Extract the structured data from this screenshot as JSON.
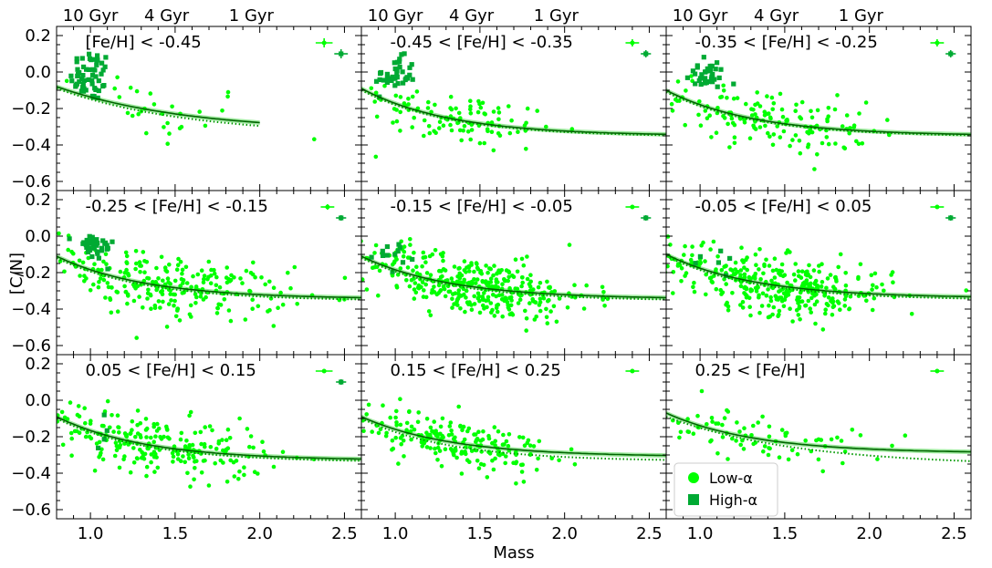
{
  "chart_data": {
    "type": "scatter",
    "layout": "3x3 grid of panels",
    "xlabel": "Mass",
    "ylabel": "[C/N]",
    "xlim": [
      0.8,
      2.6
    ],
    "ylim": [
      -0.65,
      0.25
    ],
    "xticks": [
      "1.0",
      "1.5",
      "2.0",
      "2.5"
    ],
    "yticks": [
      "0.2",
      "0.0",
      "−0.2",
      "−0.4",
      "−0.6"
    ],
    "age_labels": [
      "10 Gyr",
      "4 Gyr",
      "1 Gyr"
    ],
    "age_label_mass": [
      1.0,
      1.45,
      1.95
    ],
    "colors": {
      "low_alpha": "#00ff00",
      "high_alpha": "#00aa33",
      "fit_line": "#006400",
      "fit_band": "#8ee58e",
      "dotted_line": "#009900"
    },
    "legend": {
      "position": "lower-left of bottom-right panel",
      "entries": [
        {
          "label": "Low-α",
          "marker": "circle",
          "color": "#00ff00"
        },
        {
          "label": "High-α",
          "marker": "square",
          "color": "#00aa33"
        }
      ]
    },
    "panels": [
      {
        "title": "[Fe/H] < -0.45",
        "fit_end": 2.0,
        "fit": {
          "y_start": -0.08,
          "y_plateau": -0.33,
          "k": 1.3
        },
        "dotted": {
          "y_start": -0.09,
          "y_plateau": -0.35,
          "k": 1.3
        },
        "low_alpha": {
          "n": 30,
          "cx": 1.35,
          "sx": 0.35,
          "cy": -0.2,
          "sy": 0.1
        },
        "high_alpha": {
          "n": 55,
          "cx": 1.0,
          "sx": 0.06,
          "cy": -0.02,
          "sy": 0.07
        },
        "errorbars": [
          {
            "x": 2.38,
            "y": 0.16,
            "xerr": 0.05,
            "yerr": 0.025,
            "type": "low"
          },
          {
            "x": 2.48,
            "y": 0.1,
            "xerr": 0.04,
            "yerr": 0.025,
            "type": "high"
          }
        ]
      },
      {
        "title": "-0.45 < [Fe/H] < -0.35",
        "fit_end": 2.6,
        "fit": {
          "y_start": -0.09,
          "y_plateau": -0.35,
          "k": 1.9
        },
        "dotted": {
          "y_start": -0.1,
          "y_plateau": -0.355,
          "k": 1.9
        },
        "low_alpha": {
          "n": 110,
          "cx": 1.35,
          "sx": 0.3,
          "cy": -0.22,
          "sy": 0.08
        },
        "high_alpha": {
          "n": 40,
          "cx": 1.0,
          "sx": 0.06,
          "cy": -0.02,
          "sy": 0.05
        },
        "errorbars": [
          {
            "x": 2.4,
            "y": 0.16,
            "xerr": 0.04,
            "yerr": 0.02,
            "type": "low"
          },
          {
            "x": 2.48,
            "y": 0.1,
            "xerr": 0.03,
            "yerr": 0.02,
            "type": "high"
          }
        ]
      },
      {
        "title": "-0.35 < [Fe/H] < -0.25",
        "fit_end": 2.6,
        "fit": {
          "y_start": -0.1,
          "y_plateau": -0.35,
          "k": 1.9
        },
        "dotted": {
          "y_start": -0.11,
          "y_plateau": -0.355,
          "k": 1.9
        },
        "low_alpha": {
          "n": 150,
          "cx": 1.4,
          "sx": 0.3,
          "cy": -0.22,
          "sy": 0.08
        },
        "high_alpha": {
          "n": 35,
          "cx": 1.03,
          "sx": 0.06,
          "cy": -0.02,
          "sy": 0.04
        },
        "errorbars": [
          {
            "x": 2.4,
            "y": 0.16,
            "xerr": 0.04,
            "yerr": 0.02,
            "type": "low"
          },
          {
            "x": 2.48,
            "y": 0.1,
            "xerr": 0.03,
            "yerr": 0.02,
            "type": "high"
          }
        ]
      },
      {
        "title": "-0.25 < [Fe/H] < -0.15",
        "fit_end": 2.6,
        "fit": {
          "y_start": -0.11,
          "y_plateau": -0.345,
          "k": 1.9
        },
        "dotted": {
          "y_start": -0.12,
          "y_plateau": -0.355,
          "k": 1.9
        },
        "low_alpha": {
          "n": 260,
          "cx": 1.45,
          "sx": 0.35,
          "cy": -0.25,
          "sy": 0.08
        },
        "high_alpha": {
          "n": 35,
          "cx": 1.02,
          "sx": 0.06,
          "cy": -0.06,
          "sy": 0.04
        },
        "errorbars": [
          {
            "x": 2.4,
            "y": 0.16,
            "xerr": 0.04,
            "yerr": 0.015,
            "type": "low"
          },
          {
            "x": 2.48,
            "y": 0.1,
            "xerr": 0.03,
            "yerr": 0.015,
            "type": "high"
          }
        ]
      },
      {
        "title": "-0.15 < [Fe/H] < -0.05",
        "fit_end": 2.6,
        "fit": {
          "y_start": -0.11,
          "y_plateau": -0.345,
          "k": 1.9
        },
        "dotted": {
          "y_start": -0.12,
          "y_plateau": -0.355,
          "k": 1.9
        },
        "low_alpha": {
          "n": 380,
          "cx": 1.45,
          "sx": 0.35,
          "cy": -0.26,
          "sy": 0.08
        },
        "high_alpha": {
          "n": 12,
          "cx": 1.02,
          "sx": 0.06,
          "cy": -0.11,
          "sy": 0.04
        },
        "errorbars": [
          {
            "x": 2.4,
            "y": 0.16,
            "xerr": 0.04,
            "yerr": 0.01,
            "type": "low"
          },
          {
            "x": 2.48,
            "y": 0.1,
            "xerr": 0.03,
            "yerr": 0.015,
            "type": "high"
          }
        ]
      },
      {
        "title": "-0.05 < [Fe/H] < 0.05",
        "fit_end": 2.6,
        "fit": {
          "y_start": -0.1,
          "y_plateau": -0.34,
          "k": 1.9
        },
        "dotted": {
          "y_start": -0.11,
          "y_plateau": -0.35,
          "k": 1.9
        },
        "low_alpha": {
          "n": 360,
          "cx": 1.45,
          "sx": 0.35,
          "cy": -0.25,
          "sy": 0.08
        },
        "high_alpha": {
          "n": 6,
          "cx": 1.05,
          "sx": 0.05,
          "cy": -0.13,
          "sy": 0.03
        },
        "errorbars": [
          {
            "x": 2.4,
            "y": 0.16,
            "xerr": 0.04,
            "yerr": 0.01,
            "type": "low"
          },
          {
            "x": 2.48,
            "y": 0.1,
            "xerr": 0.03,
            "yerr": 0.015,
            "type": "high"
          }
        ]
      },
      {
        "title": "0.05 < [Fe/H] < 0.15",
        "fit_end": 2.6,
        "fit": {
          "y_start": -0.09,
          "y_plateau": -0.33,
          "k": 1.9
        },
        "dotted": {
          "y_start": -0.1,
          "y_plateau": -0.34,
          "k": 1.9
        },
        "low_alpha": {
          "n": 230,
          "cx": 1.4,
          "sx": 0.32,
          "cy": -0.23,
          "sy": 0.08
        },
        "high_alpha": {
          "n": 4,
          "cx": 1.05,
          "sx": 0.05,
          "cy": -0.2,
          "sy": 0.05
        },
        "errorbars": [
          {
            "x": 2.38,
            "y": 0.16,
            "xerr": 0.05,
            "yerr": 0.01,
            "type": "low"
          },
          {
            "x": 2.48,
            "y": 0.1,
            "xerr": 0.03,
            "yerr": 0.015,
            "type": "high"
          }
        ]
      },
      {
        "title": "0.15 < [Fe/H] < 0.25",
        "fit_end": 2.6,
        "fit": {
          "y_start": -0.09,
          "y_plateau": -0.31,
          "k": 1.9
        },
        "dotted": {
          "y_start": -0.1,
          "y_plateau": -0.335,
          "k": 1.9
        },
        "low_alpha": {
          "n": 200,
          "cx": 1.35,
          "sx": 0.28,
          "cy": -0.22,
          "sy": 0.07
        },
        "high_alpha": {
          "n": 0,
          "cx": 1.0,
          "sx": 0.05,
          "cy": -0.1,
          "sy": 0.04
        },
        "errorbars": [
          {
            "x": 2.4,
            "y": 0.16,
            "xerr": 0.04,
            "yerr": 0.01,
            "type": "low"
          }
        ]
      },
      {
        "title": "0.25 < [Fe/H]",
        "fit_end": 2.6,
        "fit": {
          "y_start": -0.07,
          "y_plateau": -0.29,
          "k": 1.9
        },
        "dotted": {
          "y_start": -0.09,
          "y_plateau": -0.36,
          "k": 1.3
        },
        "low_alpha": {
          "n": 80,
          "cx": 1.35,
          "sx": 0.3,
          "cy": -0.22,
          "sy": 0.07
        },
        "high_alpha": {
          "n": 0,
          "cx": 1.0,
          "sx": 0.05,
          "cy": -0.1,
          "sy": 0.04
        },
        "errorbars": [
          {
            "x": 2.4,
            "y": 0.16,
            "xerr": 0.04,
            "yerr": 0.01,
            "type": "low"
          }
        ]
      }
    ]
  }
}
